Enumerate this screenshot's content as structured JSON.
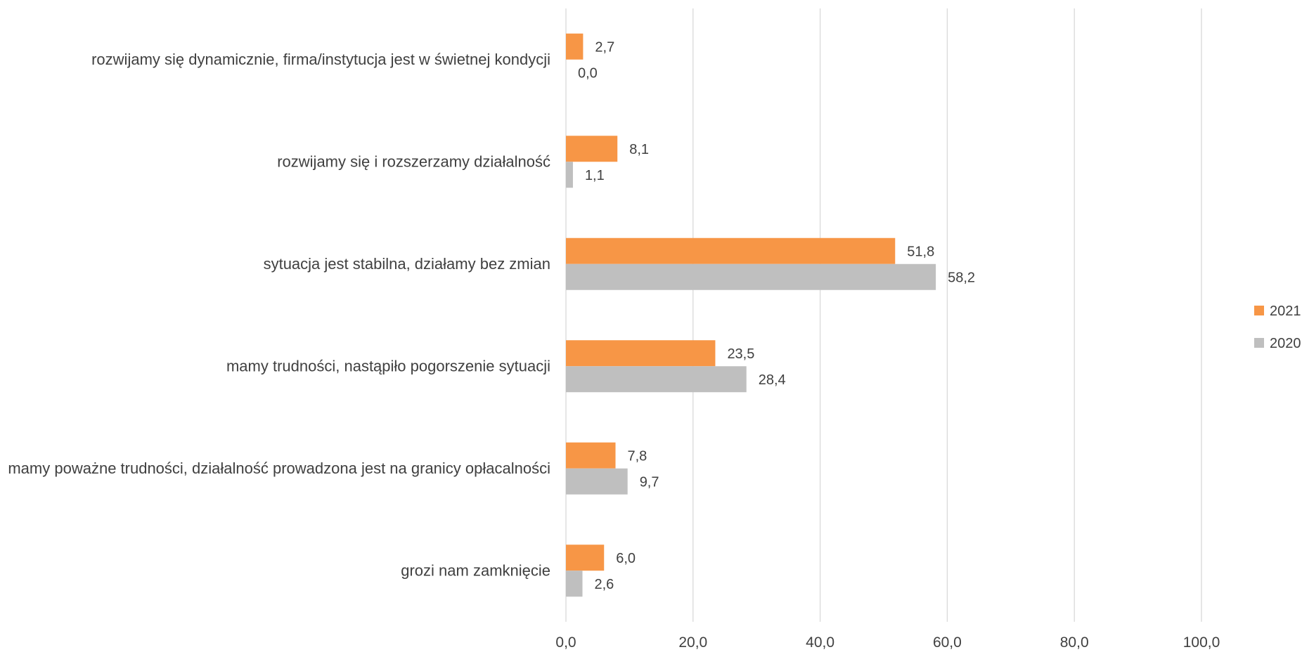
{
  "chart_data": {
    "type": "bar",
    "orientation": "horizontal",
    "categories": [
      "rozwijamy się dynamicznie, firma/instytucja jest w świetnej kondycji",
      "rozwijamy się i rozszerzamy działalność",
      "sytuacja jest stabilna, działamy bez zmian",
      "mamy trudności, nastąpiło pogorszenie sytuacji",
      "mamy poważne trudności, działalność prowadzona jest na granicy opłacalności",
      "grozi nam zamknięcie"
    ],
    "series": [
      {
        "name": "2021",
        "color": "#F79646",
        "values": [
          2.7,
          8.1,
          51.8,
          23.5,
          7.8,
          6.0
        ],
        "labels": [
          "2,7",
          "8,1",
          "51,8",
          "23,5",
          "7,8",
          "6,0"
        ]
      },
      {
        "name": "2020",
        "color": "#BFBFBF",
        "values": [
          0.0,
          1.1,
          58.2,
          28.4,
          9.7,
          2.6
        ],
        "labels": [
          "0,0",
          "1,1",
          "58,2",
          "28,4",
          "9,7",
          "2,6"
        ]
      }
    ],
    "xlim": [
      0,
      100
    ],
    "x_ticks": [
      0,
      20,
      40,
      60,
      80,
      100
    ],
    "x_tick_labels": [
      "0,0",
      "20,0",
      "40,0",
      "60,0",
      "80,0",
      "100,0"
    ],
    "grid": true,
    "legend_position": "right",
    "gridline_color": "#D9D9D9",
    "text_color": "#404040"
  }
}
